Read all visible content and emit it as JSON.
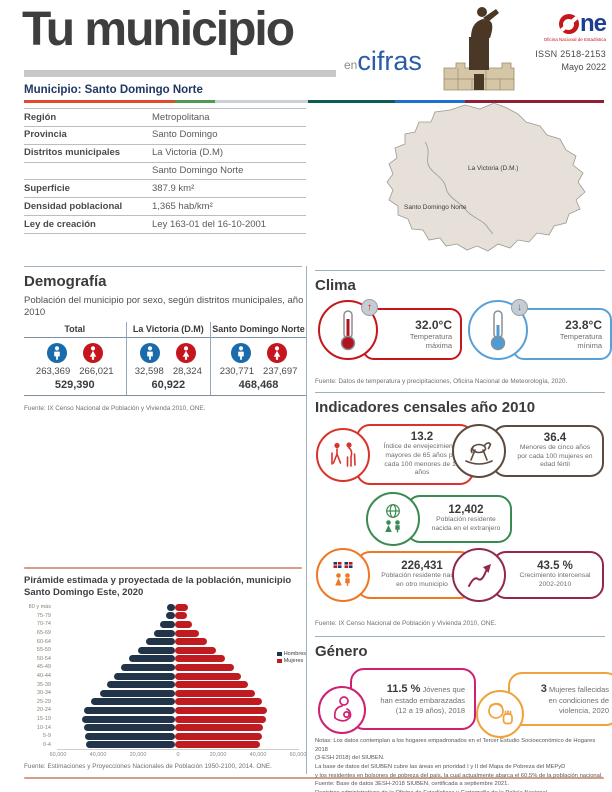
{
  "header": {
    "title": "Tu municipio",
    "tagline_en": "en",
    "tagline_cifras": "cifras",
    "logo_ne": "ne",
    "logo_tagline": "Oficina Nacional de Estadística",
    "issn": "ISSN 2518-2153",
    "date": "Mayo 2022",
    "municipio": "Municipio: Santo Domingo Norte"
  },
  "info_table": {
    "rows": [
      {
        "label": "Región",
        "value": "Metropolitana"
      },
      {
        "label": "Provincia",
        "value": "Santo Domingo"
      },
      {
        "label": "Distritos municipales",
        "value": "La Victoria (D.M)"
      },
      {
        "label": "",
        "value": "Santo Domingo Norte"
      },
      {
        "label": "Superficie",
        "value": "387.9 km²"
      },
      {
        "label": "Densidad poblacional",
        "value": "1,365 hab/km²"
      },
      {
        "label": "Ley de creación",
        "value": "Ley 163-01 del 16-10-2001"
      }
    ]
  },
  "map": {
    "region_top": "La Victoria (D.M.)",
    "region_bottom": "Santo Domingo Norte"
  },
  "demografia": {
    "title": "Demografía",
    "subtitle": "Población del municipio por sexo, según distritos municipales, año 2010",
    "groups": [
      {
        "name": "Total",
        "male": "263,369",
        "female": "266,021",
        "total": "529,390"
      },
      {
        "name": "La Victoria (D.M)",
        "male": "32,598",
        "female": "28,324",
        "total": "60,922"
      },
      {
        "name": "Santo Domingo Norte",
        "male": "230,771",
        "female": "237,697",
        "total": "468,468"
      }
    ],
    "fuente": "Fuente: IX Censo Nacional de Población y Vivienda 2010, ONE."
  },
  "clima": {
    "title": "Clima",
    "items": [
      {
        "value": "32.0°C",
        "label": "Temperatura máxima",
        "color": "#c4161c",
        "arrow": "↑"
      },
      {
        "value": "23.8°C",
        "label": "Temperatura mínima",
        "color": "#58a1d8",
        "arrow": "↓"
      }
    ],
    "fuente": "Fuente: Datos de temperatura y precipitaciones, Oficina Nacional de Meteorología, 2020."
  },
  "indicadores": {
    "title": "Indicadores censales año 2010",
    "items": [
      {
        "value": "13.2",
        "label": "Índice de envejecimiento: mayores de 65 años por cada 100 menores de 15 años",
        "color": "#d9342b"
      },
      {
        "value": "36.4",
        "label": "Menores de cinco años por cada 100 mujeres en edad fértil",
        "color": "#5d4a3f"
      },
      {
        "value": "12,402",
        "label": "Población residente nacida en el extranjero",
        "color": "#3a8a52"
      },
      {
        "value": "226,431",
        "label": "Población residente nacida en otro municipio",
        "color": "#ef7723"
      },
      {
        "value": "43.5 %",
        "label": "Crecimiento intercensal 2002-2010",
        "color": "#93274d"
      }
    ],
    "fuente": "Fuente: IX Censo Nacional de Población y Vivienda 2010, ONE."
  },
  "genero": {
    "title": "Género",
    "items": [
      {
        "value": "11.5 %",
        "label": "Jóvenes que han estado embarazadas (12 a 19 años), 2018",
        "color": "#cf2071"
      },
      {
        "value": "3",
        "label": "Mujeres fallecidas en condiciones de violencia, 2020",
        "color": "#f0a23c"
      }
    ],
    "notas": [
      "Notas: Los datos contemplan a los hogares empadronados en el Tercer Estudio Socioeconómico de Hogares 2018",
      "(3-ESH 2018) del SIUBEN.",
      "La base de datos del SIUBEN cubre las áreas en prioridad I y II del Mapa de Pobreza del MEPyD",
      "y los residentes en bolsones de pobreza del país, la cual actualmente abarca el 60.5% de la población nacional.",
      "Fuente: Base de datos 3ESH-2018 SIUBEN, certificada a septiembre 2021.",
      "Registros administrativos de la Oficina de Estadísticas y Cartografía de la Policía Nacional."
    ]
  },
  "piramide": {
    "title": "Pirámide estimada y proyectada de la población, municipio Santo Domingo Este, 2020",
    "fuente": "Fuente: Estimaciones y Proyecciones Nacionales de Población 1950-2100, 2014. ONE."
  },
  "chart_data": {
    "type": "bar",
    "subtype": "population-pyramid",
    "title": "Pirámide estimada y proyectada de la población, municipio Santo Domingo Este, 2020",
    "categories": [
      "80 y más",
      "75-79",
      "70-74",
      "65-69",
      "60-64",
      "55-59",
      "50-54",
      "45-49",
      "40-44",
      "35-39",
      "30-34",
      "25-29",
      "20-24",
      "15-19",
      "10-14",
      "5-9",
      "0-4"
    ],
    "series": [
      {
        "name": "Hombres",
        "color": "#21344a",
        "values": [
          4000,
          4600,
          7300,
          10500,
          14400,
          18600,
          23000,
          27000,
          30600,
          33800,
          37600,
          41800,
          45400,
          46400,
          45500,
          44900,
          44300
        ]
      },
      {
        "name": "Mujeres",
        "color": "#c01b20",
        "values": [
          6300,
          5800,
          8700,
          12000,
          16100,
          20500,
          25200,
          29400,
          33200,
          36500,
          40100,
          43600,
          45900,
          45600,
          44100,
          43300,
          42600
        ]
      }
    ],
    "xlim": [
      -60000,
      60000
    ],
    "x_ticks": [
      {
        "value": -60000,
        "label": "60,000"
      },
      {
        "value": -40000,
        "label": "40,000"
      },
      {
        "value": -20000,
        "label": "20,000"
      },
      {
        "value": 0,
        "label": "0"
      },
      {
        "value": 20000,
        "label": "20,000"
      },
      {
        "value": 40000,
        "label": "40,000"
      },
      {
        "value": 60000,
        "label": "60,000"
      }
    ],
    "legend_position": "right",
    "grid": false
  },
  "colors": {
    "brand_blue": "#1e3d8f",
    "accent_red": "#c4161c",
    "male_blue": "#1a6bab",
    "female_red": "#c4161c",
    "divider_gray": "#9fb0bd",
    "salmon_divider": "#d89d86"
  }
}
